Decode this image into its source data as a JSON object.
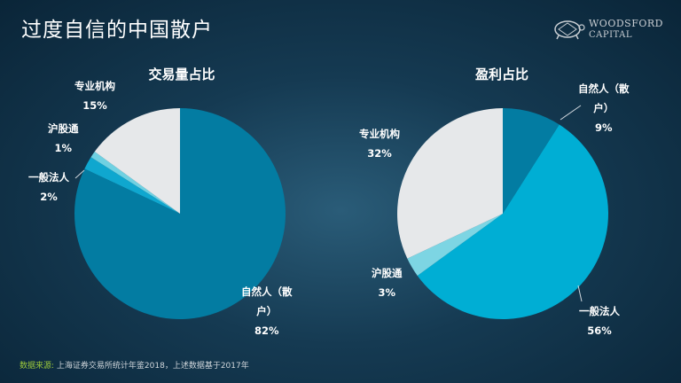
{
  "slide": {
    "title": "过度自信的中国散户"
  },
  "logo": {
    "line1": "WOODSFORD",
    "line2": "CAPITAL"
  },
  "chart_data": [
    {
      "type": "pie",
      "title": "交易量占比",
      "start_angle_deg": 0,
      "slices": [
        {
          "label": "自然人（散户）",
          "value": 82,
          "display": "82%",
          "color": "#037ca2"
        },
        {
          "label": "一般法人",
          "value": 2,
          "display": "2%",
          "color": "#0fa7cf"
        },
        {
          "label": "沪股通",
          "value": 1,
          "display": "1%",
          "color": "#6fd1e2"
        },
        {
          "label": "专业机构",
          "value": 15,
          "display": "15%",
          "color": "#e6e8ea"
        }
      ]
    },
    {
      "type": "pie",
      "title": "盈利占比",
      "start_angle_deg": 0,
      "slices": [
        {
          "label": "自然人（散户）",
          "value": 9,
          "display": "9%",
          "color": "#037ca2"
        },
        {
          "label": "一般法人",
          "value": 56,
          "display": "56%",
          "color": "#00aed4"
        },
        {
          "label": "沪股通",
          "value": 3,
          "display": "3%",
          "color": "#7dd5e3"
        },
        {
          "label": "专业机构",
          "value": 32,
          "display": "32%",
          "color": "#e6e8ea"
        }
      ]
    }
  ],
  "labels": {
    "chart1": {
      "retail_l1": "自然人（散",
      "retail_l2": "户）",
      "retail_pct": "82%",
      "corp_name": "一般法人",
      "corp_pct": "2%",
      "hk_name": "沪股通",
      "hk_pct": "1%",
      "inst_name": "专业机构",
      "inst_pct": "15%"
    },
    "chart2": {
      "retail_l1": "自然人（散",
      "retail_l2": "户）",
      "retail_pct": "9%",
      "corp_name": "一般法人",
      "corp_pct": "56%",
      "hk_name": "沪股通",
      "hk_pct": "3%",
      "inst_name": "专业机构",
      "inst_pct": "32%"
    }
  },
  "footer": {
    "source_label": "数据来源:",
    "source_text": "上海证券交易所统计年鉴2018，上述数据基于2017年"
  },
  "colors": {
    "line": "#cfd6dc"
  }
}
